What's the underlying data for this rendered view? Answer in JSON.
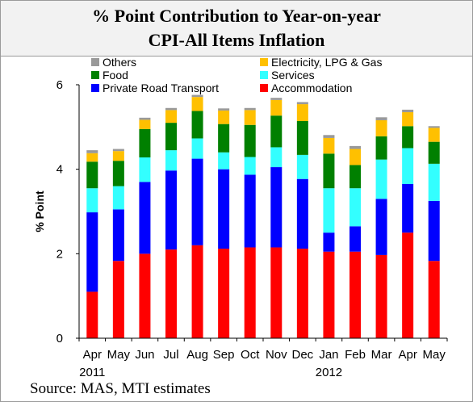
{
  "title": {
    "line1": "% Point Contribution to Year-on-year",
    "line2": "CPI-All Items Inflation"
  },
  "source": "Source: MAS, MTI estimates",
  "chart_data": {
    "type": "bar",
    "stacked": true,
    "ylabel": "% Point",
    "ylim": [
      0,
      6
    ],
    "yticks": [
      "0",
      "2",
      "4",
      "6"
    ],
    "categories": [
      "Apr",
      "May",
      "Jun",
      "Jul",
      "Aug",
      "Sep",
      "Oct",
      "Nov",
      "Dec",
      "Jan",
      "Feb",
      "Mar",
      "Apr",
      "May"
    ],
    "year_labels": [
      {
        "category_index": 0,
        "text": "2011"
      },
      {
        "category_index": 9,
        "text": "2012"
      }
    ],
    "grid": false,
    "legend_position": "top",
    "series": [
      {
        "name": "Accommodation",
        "color": "#ff0000",
        "values": [
          1.1,
          1.83,
          2.0,
          2.1,
          2.2,
          2.12,
          2.15,
          2.15,
          2.12,
          2.05,
          2.05,
          1.97,
          2.5,
          1.83
        ]
      },
      {
        "name": "Private Road Transport",
        "color": "#0000ff",
        "values": [
          1.88,
          1.22,
          1.7,
          1.87,
          2.05,
          1.88,
          1.72,
          1.9,
          1.65,
          0.45,
          0.6,
          1.33,
          1.15,
          1.42
        ]
      },
      {
        "name": "Services",
        "color": "#33ffff",
        "values": [
          0.57,
          0.55,
          0.58,
          0.48,
          0.48,
          0.4,
          0.42,
          0.47,
          0.57,
          1.05,
          0.9,
          0.93,
          0.85,
          0.88
        ]
      },
      {
        "name": "Food",
        "color": "#008000",
        "values": [
          0.63,
          0.6,
          0.67,
          0.65,
          0.65,
          0.67,
          0.76,
          0.75,
          0.8,
          0.82,
          0.55,
          0.55,
          0.52,
          0.52
        ]
      },
      {
        "name": "Electricity, LPG & Gas",
        "color": "#ffc000",
        "values": [
          0.2,
          0.23,
          0.22,
          0.3,
          0.33,
          0.32,
          0.35,
          0.37,
          0.4,
          0.37,
          0.38,
          0.38,
          0.33,
          0.33
        ]
      },
      {
        "name": "Others",
        "color": "#999999",
        "values": [
          0.07,
          0.05,
          0.05,
          0.05,
          0.05,
          0.05,
          0.05,
          0.05,
          0.05,
          0.07,
          0.07,
          0.07,
          0.06,
          0.04
        ]
      }
    ],
    "legend_order": [
      "Others",
      "Electricity, LPG & Gas",
      "Food",
      "Services",
      "Private Road Transport",
      "Accommodation"
    ]
  }
}
